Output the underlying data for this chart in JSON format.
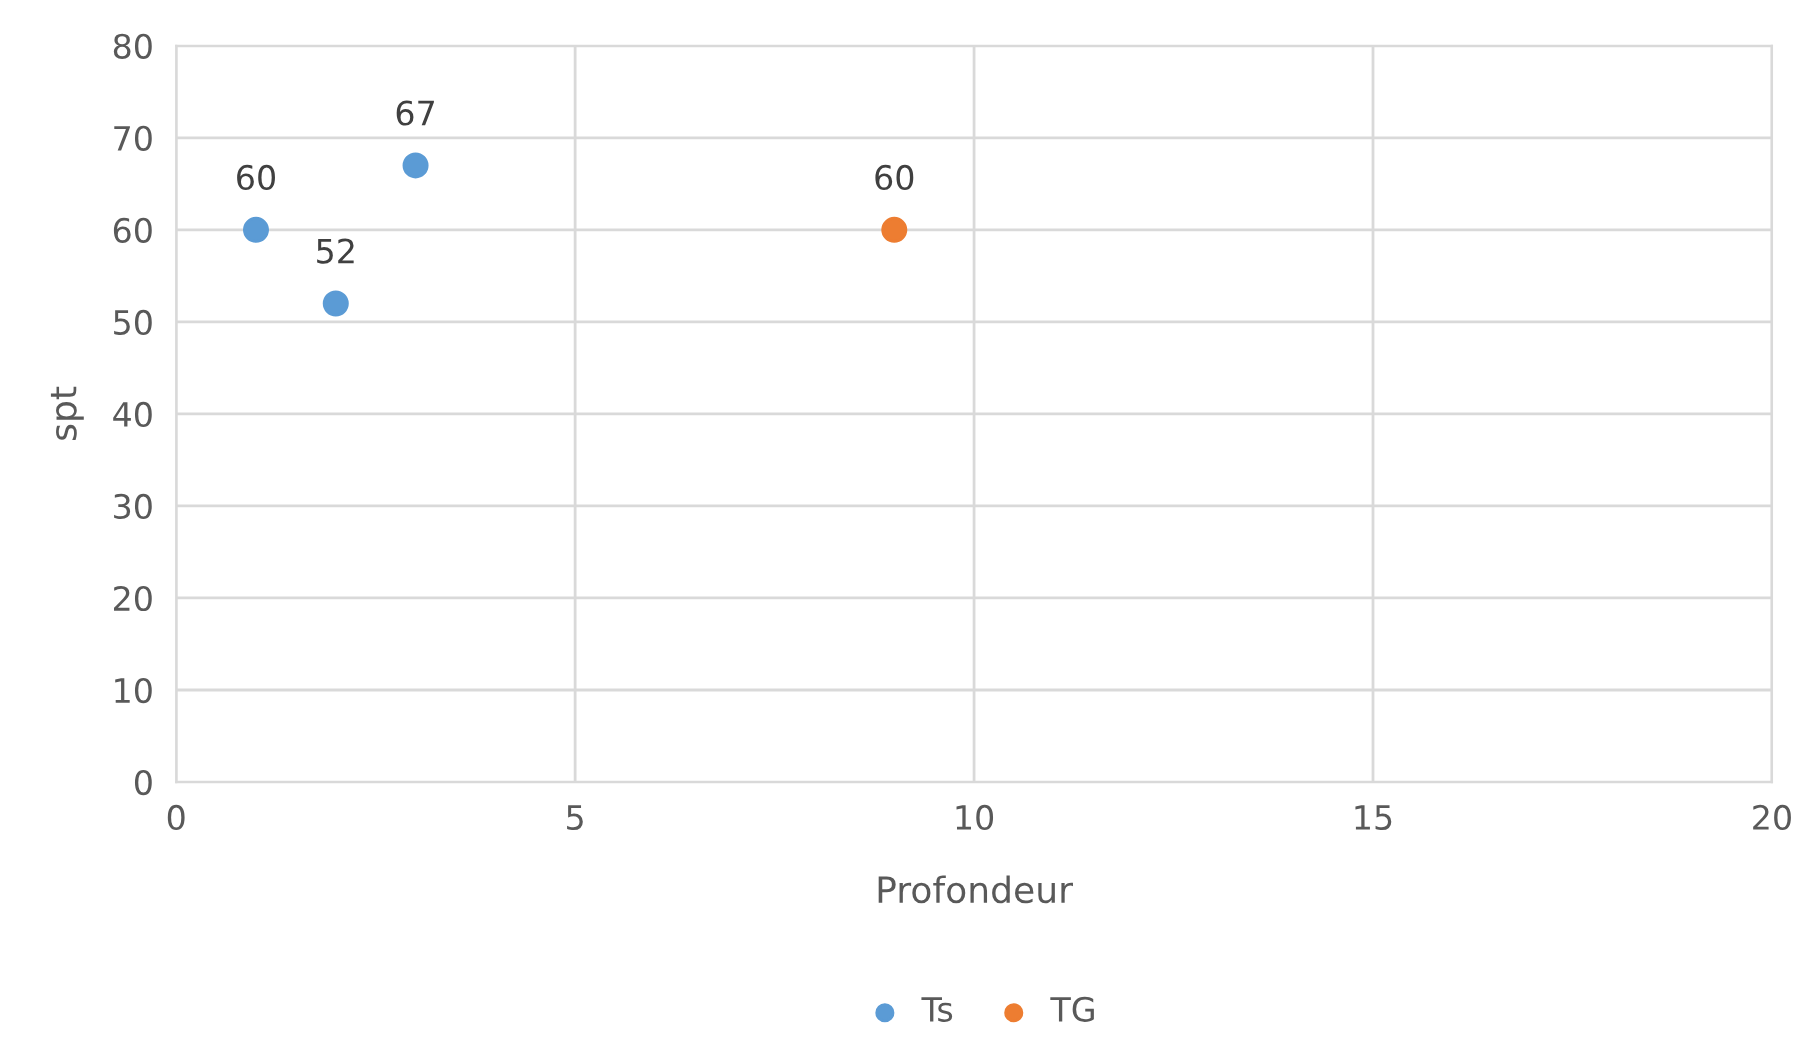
{
  "chart_data": {
    "type": "scatter",
    "xlabel": "Profondeur",
    "ylabel": "spt",
    "series": [
      {
        "name": "Ts",
        "color": "#5b9bd5",
        "x": [
          1,
          2,
          3
        ],
        "values": [
          60,
          52,
          67
        ]
      },
      {
        "name": "TG",
        "color": "#ed7d31",
        "x": [
          9
        ],
        "values": [
          60
        ]
      }
    ],
    "xlim": [
      0,
      20
    ],
    "xticks": [
      0,
      5,
      10,
      15,
      20
    ],
    "ylim": [
      0,
      80
    ],
    "yticks": [
      0,
      10,
      20,
      30,
      40,
      50,
      60,
      70,
      80
    ],
    "grid": true,
    "legend": "bottom",
    "marker": "circle",
    "data_labels": true
  }
}
